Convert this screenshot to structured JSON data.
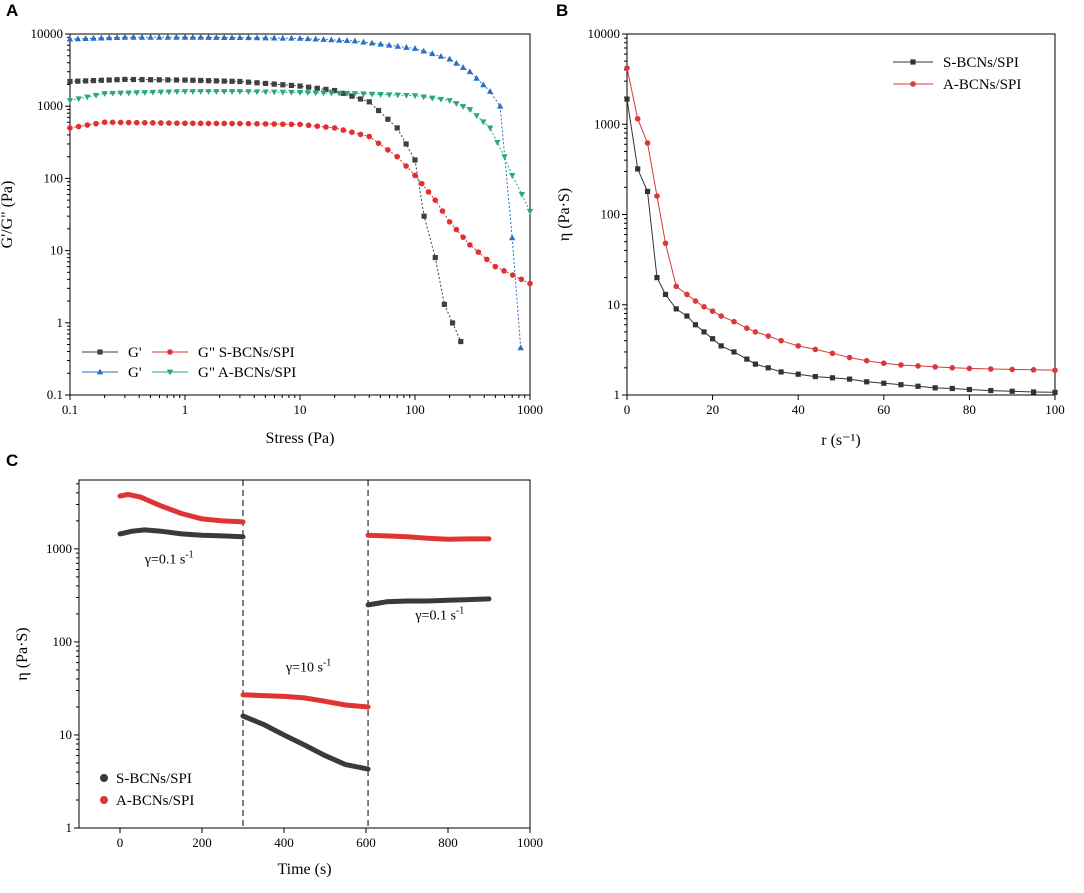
{
  "panels": {
    "A": {
      "letter": "A"
    },
    "B": {
      "letter": "B"
    },
    "C": {
      "letter": "C"
    }
  },
  "chart_data": [
    {
      "id": "A",
      "type": "scatter",
      "xscale": "log",
      "yscale": "log",
      "xlabel": "Stress (Pa)",
      "ylabel": "G'/G\" (Pa)",
      "xlim": [
        0.1,
        1000
      ],
      "ylim": [
        0.1,
        10000
      ],
      "xticks": [
        "0.1",
        "1",
        "10",
        "100",
        "1000"
      ],
      "yticks": [
        "0.1",
        "1",
        "10",
        "100",
        "1000",
        "10000"
      ],
      "legend": {
        "position": "bottom-left",
        "rows": [
          {
            "label": "G'",
            "series": [
              0,
              2
            ]
          },
          {
            "label": "G\" S-BCNs/SPI",
            "series": [
              1
            ]
          },
          {
            "label": "G'",
            "series": [
              2
            ]
          },
          {
            "label": "G\" A-BCNs/SPI",
            "series": [
              3
            ]
          }
        ]
      },
      "series": [
        {
          "name": "G' S-BCNs/SPI",
          "color": "#404040",
          "marker": "square",
          "points": [
            [
              0.1,
              2200
            ],
            [
              0.3,
              2350
            ],
            [
              1,
              2300
            ],
            [
              3,
              2200
            ],
            [
              10,
              1900
            ],
            [
              20,
              1650
            ],
            [
              40,
              1150
            ],
            [
              70,
              500
            ],
            [
              100,
              180
            ],
            [
              120,
              30
            ],
            [
              150,
              8
            ],
            [
              180,
              1.8
            ],
            [
              250,
              0.55
            ]
          ]
        },
        {
          "name": "G\" S-BCNs/SPI",
          "color": "#e03030",
          "marker": "circle",
          "points": [
            [
              0.1,
              500
            ],
            [
              0.2,
              600
            ],
            [
              1,
              580
            ],
            [
              3,
              575
            ],
            [
              10,
              560
            ],
            [
              20,
              500
            ],
            [
              40,
              380
            ],
            [
              70,
              200
            ],
            [
              100,
              110
            ],
            [
              150,
              50
            ],
            [
              200,
              25
            ],
            [
              300,
              12
            ],
            [
              500,
              6
            ],
            [
              1000,
              3.5
            ]
          ]
        },
        {
          "name": "G' A-BCNs/SPI",
          "color": "#2a6fc4",
          "marker": "triangle-up",
          "points": [
            [
              0.1,
              8500
            ],
            [
              0.3,
              9000
            ],
            [
              1,
              9000
            ],
            [
              3,
              8900
            ],
            [
              10,
              8700
            ],
            [
              30,
              8000
            ],
            [
              100,
              6300
            ],
            [
              200,
              4500
            ],
            [
              300,
              3000
            ],
            [
              450,
              1600
            ],
            [
              550,
              1000
            ],
            [
              700,
              15
            ],
            [
              830,
              0.45
            ]
          ]
        },
        {
          "name": "G\" A-BCNs/SPI",
          "color": "#2aa878",
          "marker": "triangle-down",
          "points": [
            [
              0.1,
              1200
            ],
            [
              0.2,
              1500
            ],
            [
              1,
              1600
            ],
            [
              3,
              1600
            ],
            [
              10,
              1550
            ],
            [
              30,
              1500
            ],
            [
              100,
              1400
            ],
            [
              200,
              1200
            ],
            [
              300,
              900
            ],
            [
              450,
              500
            ],
            [
              600,
              200
            ],
            [
              700,
              110
            ],
            [
              850,
              60
            ],
            [
              1000,
              35
            ]
          ]
        }
      ]
    },
    {
      "id": "B",
      "type": "line",
      "yscale": "log",
      "xlabel": "r (s⁻¹)",
      "ylabel": "η (Pa·S)",
      "xlim": [
        0,
        100
      ],
      "ylim": [
        1,
        10000
      ],
      "xticks": [
        "0",
        "20",
        "40",
        "60",
        "80",
        "100"
      ],
      "yticks": [
        "1",
        "10",
        "100",
        "1000",
        "10000"
      ],
      "legend": {
        "position": "top-right",
        "labels": [
          "S-BCNs/SPI",
          "A-BCNs/SPI"
        ]
      },
      "series": [
        {
          "name": "S-BCNs/SPI",
          "color": "#333333",
          "marker": "square",
          "points": [
            [
              0,
              1900
            ],
            [
              2.5,
              320
            ],
            [
              4.8,
              180
            ],
            [
              7,
              20
            ],
            [
              9,
              13
            ],
            [
              11.5,
              9
            ],
            [
              14,
              7.5
            ],
            [
              16,
              6
            ],
            [
              18,
              5
            ],
            [
              20,
              4.2
            ],
            [
              22,
              3.5
            ],
            [
              25,
              3
            ],
            [
              28,
              2.5
            ],
            [
              30,
              2.2
            ],
            [
              33,
              2
            ],
            [
              36,
              1.8
            ],
            [
              40,
              1.7
            ],
            [
              44,
              1.6
            ],
            [
              48,
              1.55
            ],
            [
              52,
              1.5
            ],
            [
              56,
              1.4
            ],
            [
              60,
              1.35
            ],
            [
              64,
              1.3
            ],
            [
              68,
              1.25
            ],
            [
              72,
              1.2
            ],
            [
              76,
              1.18
            ],
            [
              80,
              1.15
            ],
            [
              85,
              1.12
            ],
            [
              90,
              1.1
            ],
            [
              95,
              1.08
            ],
            [
              100,
              1.07
            ]
          ]
        },
        {
          "name": "A-BCNs/SPI",
          "color": "#d83a3a",
          "marker": "circle",
          "points": [
            [
              0,
              4200
            ],
            [
              2.5,
              1150
            ],
            [
              4.8,
              620
            ],
            [
              7,
              160
            ],
            [
              9,
              48
            ],
            [
              11.5,
              16
            ],
            [
              14,
              13
            ],
            [
              16,
              11
            ],
            [
              18,
              9.5
            ],
            [
              20,
              8.5
            ],
            [
              22,
              7.5
            ],
            [
              25,
              6.5
            ],
            [
              28,
              5.5
            ],
            [
              30,
              5
            ],
            [
              33,
              4.5
            ],
            [
              36,
              4
            ],
            [
              40,
              3.5
            ],
            [
              44,
              3.2
            ],
            [
              48,
              2.9
            ],
            [
              52,
              2.6
            ],
            [
              56,
              2.4
            ],
            [
              60,
              2.25
            ],
            [
              64,
              2.15
            ],
            [
              68,
              2.1
            ],
            [
              72,
              2.05
            ],
            [
              76,
              2
            ],
            [
              80,
              1.97
            ],
            [
              85,
              1.94
            ],
            [
              90,
              1.92
            ],
            [
              95,
              1.9
            ],
            [
              100,
              1.88
            ]
          ]
        }
      ]
    },
    {
      "id": "C",
      "type": "line",
      "yscale": "log",
      "xlabel": "Time (s)",
      "ylabel": "η (Pa·S)",
      "xlim": [
        -100,
        1000
      ],
      "ylim": [
        1,
        5500
      ],
      "xticks": [
        "0",
        "200",
        "400",
        "600",
        "800",
        "1000"
      ],
      "yticks": [
        "1",
        "10",
        "100",
        "1000"
      ],
      "dividers": [
        300,
        605
      ],
      "annotations": [
        {
          "text": "γ=0.1 s",
          "sup": "-1",
          "x": 120,
          "y": 700
        },
        {
          "text": "γ=10 s",
          "sup": "-1",
          "x": 460,
          "y": 48
        },
        {
          "text": "γ=0.1 s",
          "sup": "-1",
          "x": 780,
          "y": 175
        }
      ],
      "legend": {
        "position": "bottom-left",
        "labels": [
          "S-BCNs/SPI",
          "A-BCNs/SPI"
        ]
      },
      "series": [
        {
          "name": "S-BCNs/SPI",
          "color": "#3a3a3a",
          "segments": [
            [
              [
                0,
                1450
              ],
              [
                30,
                1550
              ],
              [
                60,
                1600
              ],
              [
                100,
                1550
              ],
              [
                150,
                1450
              ],
              [
                200,
                1400
              ],
              [
                250,
                1380
              ],
              [
                300,
                1350
              ]
            ],
            [
              [
                300,
                16
              ],
              [
                350,
                13
              ],
              [
                400,
                10
              ],
              [
                450,
                7.8
              ],
              [
                500,
                6
              ],
              [
                550,
                4.8
              ],
              [
                605,
                4.3
              ]
            ],
            [
              [
                605,
                250
              ],
              [
                650,
                270
              ],
              [
                700,
                275
              ],
              [
                750,
                275
              ],
              [
                800,
                280
              ],
              [
                850,
                285
              ],
              [
                900,
                290
              ]
            ]
          ]
        },
        {
          "name": "A-BCNs/SPI",
          "color": "#e03434",
          "segments": [
            [
              [
                0,
                3700
              ],
              [
                20,
                3850
              ],
              [
                50,
                3600
              ],
              [
                100,
                2900
              ],
              [
                150,
                2400
              ],
              [
                200,
                2100
              ],
              [
                250,
                2000
              ],
              [
                300,
                1950
              ]
            ],
            [
              [
                300,
                27
              ],
              [
                350,
                26.5
              ],
              [
                400,
                26
              ],
              [
                450,
                25
              ],
              [
                500,
                23
              ],
              [
                550,
                21
              ],
              [
                605,
                20
              ]
            ],
            [
              [
                605,
                1400
              ],
              [
                650,
                1380
              ],
              [
                700,
                1350
              ],
              [
                750,
                1300
              ],
              [
                800,
                1270
              ],
              [
                850,
                1280
              ],
              [
                900,
                1280
              ]
            ]
          ]
        }
      ]
    }
  ]
}
